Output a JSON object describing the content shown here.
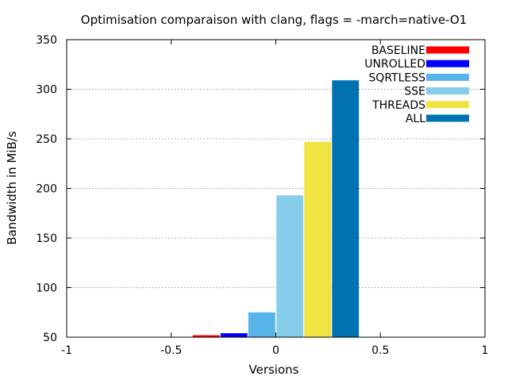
{
  "chart_data": {
    "type": "bar",
    "title": "Optimisation comparaison with clang, flags = -march=native-O1",
    "xlabel": "Versions",
    "ylabel": "Bandwidth in MiB/s",
    "xlim": [
      -1,
      1
    ],
    "ylim": [
      50,
      350
    ],
    "xticks": [
      "-1",
      "-0.5",
      "0",
      "0.5",
      "1"
    ],
    "yticks": [
      "50",
      "100",
      "150",
      "200",
      "250",
      "300",
      "350"
    ],
    "grid": "horizontal-dotted",
    "legend_position": "top-right",
    "bar_width": 0.133,
    "series": [
      {
        "name": "BASELINE",
        "x": -0.333,
        "value": 52,
        "color": "#ff0000"
      },
      {
        "name": "UNROLLED",
        "x": -0.2,
        "value": 54,
        "color": "#0000ff"
      },
      {
        "name": "SQRTLESS",
        "x": -0.067,
        "value": 75,
        "color": "#56b4e9"
      },
      {
        "name": "SSE",
        "x": 0.067,
        "value": 193,
        "color": "#87ceeb"
      },
      {
        "name": "THREADS",
        "x": 0.2,
        "value": 247,
        "color": "#f0e442"
      },
      {
        "name": "ALL",
        "x": 0.333,
        "value": 309,
        "color": "#0072b2"
      }
    ]
  }
}
